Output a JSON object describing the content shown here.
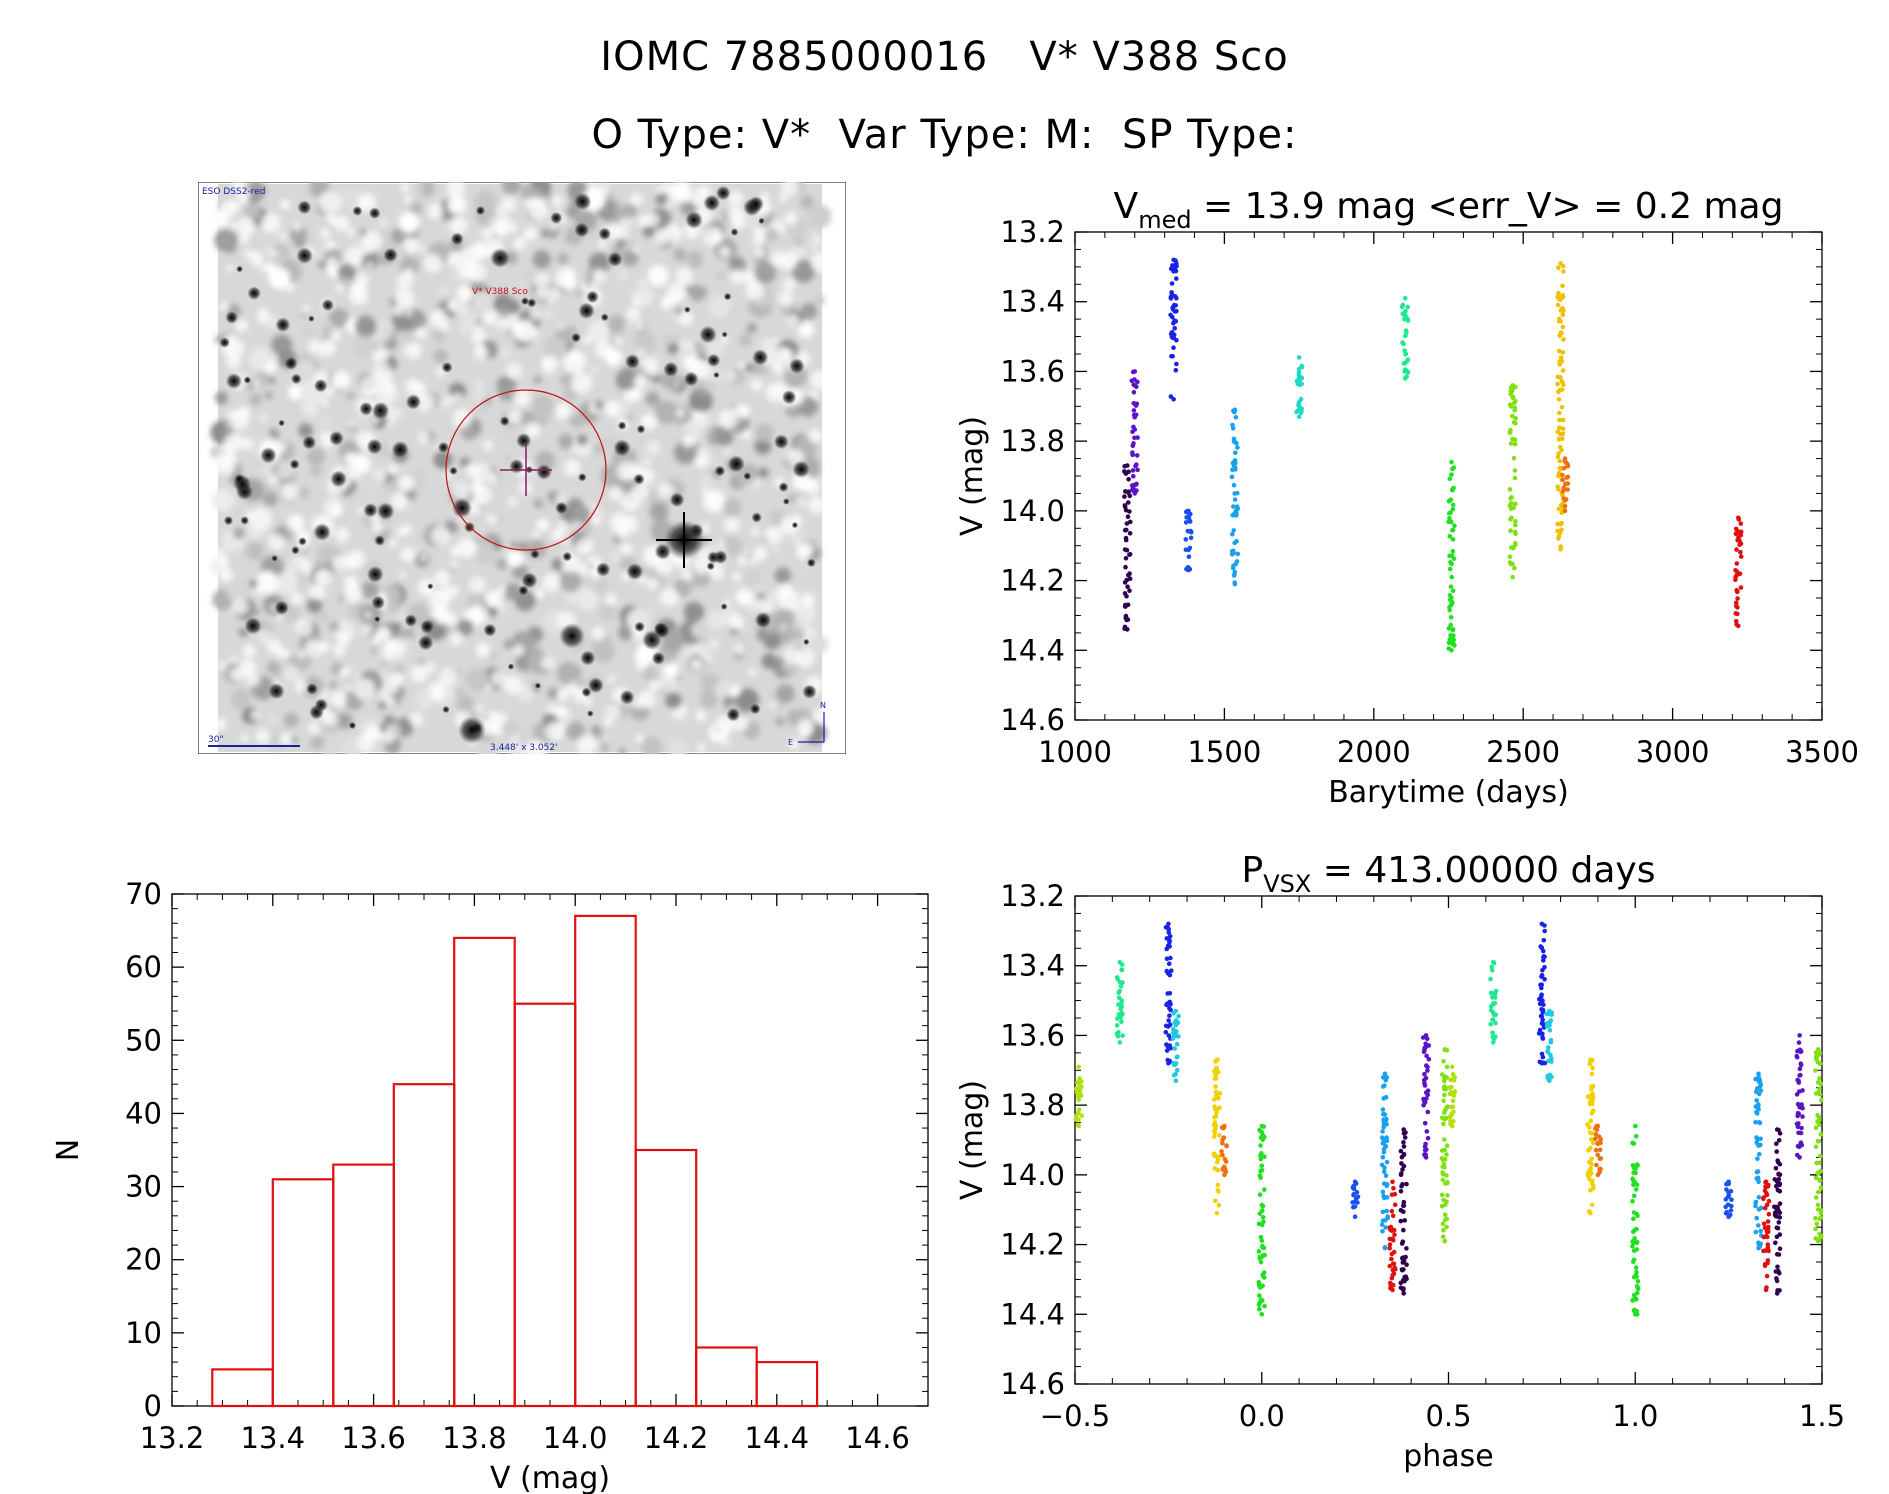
{
  "header": {
    "title_line1": "IOMC 7885000016   V* V388 Sco",
    "title_line2": "O Type: V*  Var Type: M:  SP Type:"
  },
  "finder_image": {
    "corner_label": "ESO DSS2-red",
    "target_label": "V* V388 Sco",
    "scale_label": "30\"",
    "size_label": "3.448' x 3.052'",
    "north_label": "N",
    "east_label": "E"
  },
  "chart_data": [
    {
      "id": "lightcurve",
      "type": "scatter",
      "title_prefix": "V",
      "title_sub": "med",
      "title_suffix": " = 13.9 mag <err_V> = 0.2 mag",
      "xlabel": "Barytime (days)",
      "ylabel": "V (mag)",
      "xlim": [
        1000,
        3500
      ],
      "ylim": [
        14.6,
        13.2
      ],
      "y_inverted": true,
      "xticks": [
        1000,
        1500,
        2000,
        2500,
        3000,
        3500
      ],
      "yticks": [
        13.2,
        13.4,
        13.6,
        13.8,
        14.0,
        14.2,
        14.4,
        14.6
      ],
      "clusters": [
        {
          "x": 1175,
          "ymin": 13.87,
          "ymax": 14.34,
          "color": "#300050"
        },
        {
          "x": 1200,
          "ymin": 13.6,
          "ymax": 13.95,
          "color": "#5a14c8"
        },
        {
          "x": 1330,
          "ymin": 13.28,
          "ymax": 13.68,
          "color": "#1a22e6"
        },
        {
          "x": 1380,
          "ymin": 14.0,
          "ymax": 14.17,
          "color": "#1a50f0"
        },
        {
          "x": 1535,
          "ymin": 13.71,
          "ymax": 14.21,
          "color": "#1aa0f0"
        },
        {
          "x": 1750,
          "ymin": 13.56,
          "ymax": 13.73,
          "color": "#20d8c8"
        },
        {
          "x": 2105,
          "ymin": 13.39,
          "ymax": 13.62,
          "color": "#20e890"
        },
        {
          "x": 2260,
          "ymin": 13.86,
          "ymax": 14.4,
          "color": "#20e020"
        },
        {
          "x": 2465,
          "ymin": 13.64,
          "ymax": 14.19,
          "color": "#80e010"
        },
        {
          "x": 2625,
          "ymin": 13.29,
          "ymax": 14.11,
          "color": "#f0c000"
        },
        {
          "x": 2640,
          "ymin": 13.85,
          "ymax": 14.0,
          "color": "#f07010"
        },
        {
          "x": 3220,
          "ymin": 14.02,
          "ymax": 14.33,
          "color": "#e01010"
        }
      ]
    },
    {
      "id": "histogram",
      "type": "bar",
      "xlabel": "V (mag)",
      "ylabel": "N",
      "xlim": [
        13.2,
        14.7
      ],
      "ylim": [
        0,
        70
      ],
      "xticks": [
        13.2,
        13.4,
        13.6,
        13.8,
        14.0,
        14.2,
        14.4,
        14.6
      ],
      "yticks": [
        0,
        10,
        20,
        30,
        40,
        50,
        60,
        70
      ],
      "bin_edges": [
        13.28,
        13.4,
        13.52,
        13.64,
        13.76,
        13.88,
        14.0,
        14.12,
        14.24,
        14.36,
        14.48
      ],
      "values": [
        5,
        31,
        33,
        44,
        64,
        55,
        67,
        35,
        8,
        6
      ],
      "color": "#e01010"
    },
    {
      "id": "phased",
      "type": "scatter",
      "title_prefix": "P",
      "title_sub": "VSX",
      "title_suffix": " = 413.00000 days",
      "xlabel": "phase",
      "ylabel": "V (mag)",
      "xlim": [
        -0.5,
        1.5
      ],
      "ylim": [
        14.6,
        13.2
      ],
      "y_inverted": true,
      "xticks": [
        -0.5,
        0.0,
        0.5,
        1.0,
        1.5
      ],
      "yticks": [
        13.2,
        13.4,
        13.6,
        13.8,
        14.0,
        14.2,
        14.4,
        14.6
      ],
      "clusters": [
        {
          "x": -0.49,
          "ymin": 13.69,
          "ymax": 13.86,
          "color": "#b0e010"
        },
        {
          "x": -0.38,
          "ymin": 13.39,
          "ymax": 13.62,
          "color": "#20e890"
        },
        {
          "x": -0.25,
          "ymin": 13.28,
          "ymax": 13.68,
          "color": "#1a22e6"
        },
        {
          "x": -0.23,
          "ymin": 13.53,
          "ymax": 13.73,
          "color": "#20c8e0"
        },
        {
          "x": -0.12,
          "ymin": 13.67,
          "ymax": 14.11,
          "color": "#f0d000"
        },
        {
          "x": -0.1,
          "ymin": 13.86,
          "ymax": 14.0,
          "color": "#f07010"
        },
        {
          "x": 0.0,
          "ymin": 13.86,
          "ymax": 14.4,
          "color": "#20e020"
        },
        {
          "x": 0.25,
          "ymin": 14.02,
          "ymax": 14.12,
          "color": "#1a50f0"
        },
        {
          "x": 0.33,
          "ymin": 13.71,
          "ymax": 14.21,
          "color": "#1aa0f0"
        },
        {
          "x": 0.35,
          "ymin": 14.02,
          "ymax": 14.33,
          "color": "#e01010"
        },
        {
          "x": 0.38,
          "ymin": 13.87,
          "ymax": 14.34,
          "color": "#300050"
        },
        {
          "x": 0.44,
          "ymin": 13.6,
          "ymax": 13.95,
          "color": "#5a14c8"
        },
        {
          "x": 0.49,
          "ymin": 13.64,
          "ymax": 14.19,
          "color": "#80e010"
        }
      ]
    }
  ]
}
